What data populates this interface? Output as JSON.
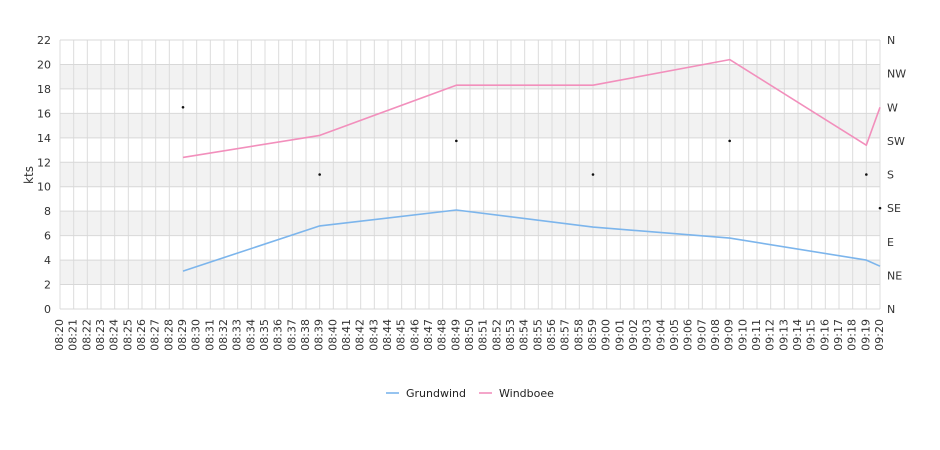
{
  "chart_data": {
    "type": "line",
    "ylabel": "kts",
    "ylim": [
      0,
      22
    ],
    "y_ticks": [
      "0",
      "2",
      "4",
      "6",
      "8",
      "10",
      "12",
      "14",
      "16",
      "18",
      "20",
      "22"
    ],
    "x_start": "08:20",
    "x_end": "09:20",
    "x_tick_labels": [
      "08:20",
      "08:21",
      "08:22",
      "08:23",
      "08:24",
      "08:25",
      "08:26",
      "08:27",
      "08:28",
      "08:29",
      "08:30",
      "08:31",
      "08:32",
      "08:33",
      "08:34",
      "08:35",
      "08:36",
      "08:37",
      "08:38",
      "08:39",
      "08:40",
      "08:41",
      "08:42",
      "08:43",
      "08:44",
      "08:45",
      "08:46",
      "08:47",
      "08:48",
      "08:49",
      "08:50",
      "08:51",
      "08:52",
      "08:53",
      "08:54",
      "08:55",
      "08:56",
      "08:57",
      "08:58",
      "08:59",
      "09:00",
      "09:01",
      "09:02",
      "09:03",
      "09:04",
      "09:05",
      "09:06",
      "09:07",
      "09:08",
      "09:09",
      "09:10",
      "09:11",
      "09:12",
      "09:13",
      "09:14",
      "09:15",
      "09:16",
      "09:17",
      "09:18",
      "09:19",
      "09:20"
    ],
    "right_axis_labels": [
      "N",
      "NE",
      "E",
      "SE",
      "S",
      "SW",
      "W",
      "NW",
      "N"
    ],
    "grid": true,
    "legend_position": "bottom",
    "series": [
      {
        "name": "Grundwind",
        "color": "#7cb5ec",
        "points": [
          {
            "x": "08:29",
            "y": 3.1
          },
          {
            "x": "08:39",
            "y": 6.8
          },
          {
            "x": "08:49",
            "y": 8.1
          },
          {
            "x": "08:59",
            "y": 6.7
          },
          {
            "x": "09:09",
            "y": 5.8
          },
          {
            "x": "09:19",
            "y": 4.0
          },
          {
            "x": "09:20",
            "y": 3.5
          }
        ]
      },
      {
        "name": "Windboee",
        "color": "#f28fbc",
        "points": [
          {
            "x": "08:29",
            "y": 12.4
          },
          {
            "x": "08:39",
            "y": 14.2
          },
          {
            "x": "08:49",
            "y": 18.3
          },
          {
            "x": "08:59",
            "y": 18.3
          },
          {
            "x": "09:09",
            "y": 20.4
          },
          {
            "x": "09:19",
            "y": 13.4
          },
          {
            "x": "09:20",
            "y": 16.5
          }
        ]
      }
    ],
    "direction_points": [
      {
        "x": "08:29",
        "dir": "W"
      },
      {
        "x": "08:39",
        "dir": "S"
      },
      {
        "x": "08:49",
        "dir": "SW"
      },
      {
        "x": "08:59",
        "dir": "S"
      },
      {
        "x": "09:09",
        "dir": "SW"
      },
      {
        "x": "09:19",
        "dir": "S"
      },
      {
        "x": "09:20",
        "dir": "SE"
      }
    ]
  }
}
